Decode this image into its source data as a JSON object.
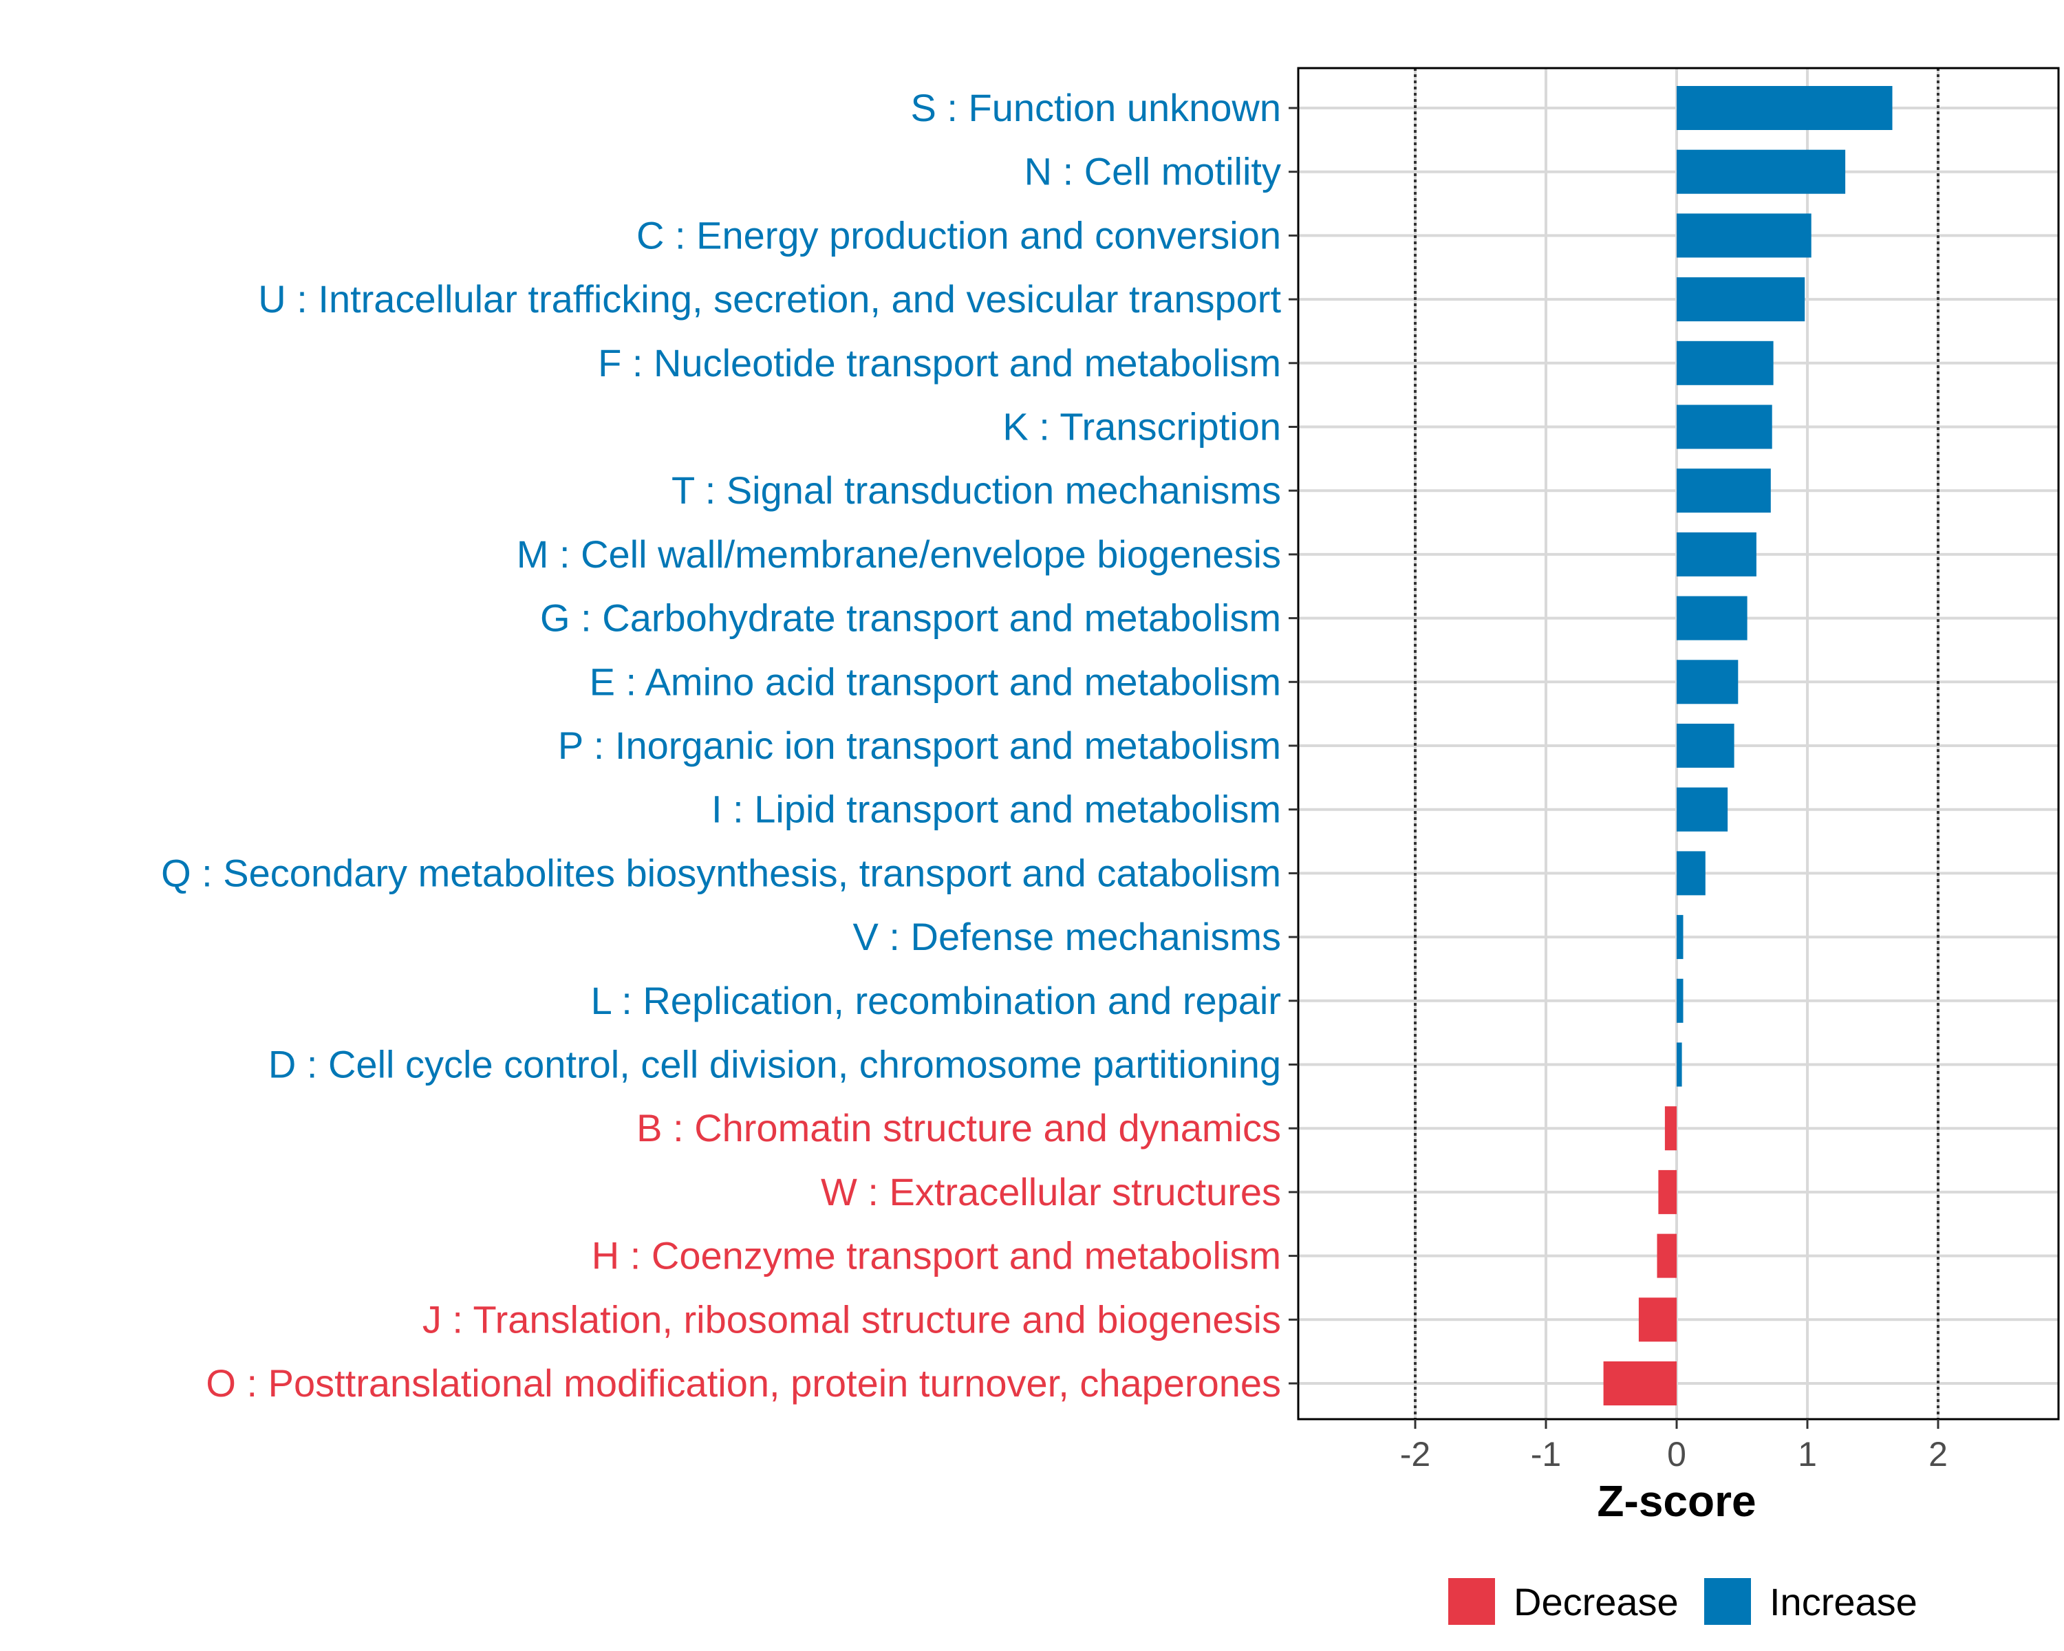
{
  "chart_data": {
    "type": "bar",
    "orientation": "horizontal",
    "title": "",
    "xlabel": "Z-score",
    "ylabel": "",
    "xlim": [
      -2.9,
      2.9
    ],
    "x_ticks": [
      -2,
      -1,
      0,
      1,
      2
    ],
    "x_tick_labels": [
      "-2",
      "-1",
      "0",
      "1",
      "2"
    ],
    "reference_lines": [
      -2,
      2
    ],
    "grid": true,
    "categories": [
      "S : Function unknown",
      "N : Cell motility",
      "C : Energy production and conversion",
      "U : Intracellular trafficking, secretion, and vesicular transport",
      "F : Nucleotide transport and metabolism",
      "K : Transcription",
      "T : Signal transduction mechanisms",
      "M : Cell wall/membrane/envelope biogenesis",
      "G : Carbohydrate transport and metabolism",
      "E : Amino acid transport and metabolism",
      "P : Inorganic ion transport and metabolism",
      "I : Lipid transport and metabolism",
      "Q : Secondary metabolites biosynthesis, transport and catabolism",
      "V : Defense mechanisms",
      "L : Replication, recombination and repair",
      "D : Cell cycle control, cell division, chromosome partitioning",
      "B : Chromatin structure and dynamics",
      "W : Extracellular structures",
      "H : Coenzyme transport and metabolism",
      "J : Translation, ribosomal structure and biogenesis",
      "O : Posttranslational modification, protein turnover, chaperones"
    ],
    "values": [
      1.65,
      1.29,
      1.03,
      0.98,
      0.74,
      0.73,
      0.72,
      0.61,
      0.54,
      0.47,
      0.44,
      0.39,
      0.22,
      0.05,
      0.05,
      0.04,
      -0.09,
      -0.14,
      -0.15,
      -0.29,
      -0.56
    ],
    "direction": [
      "Increase",
      "Increase",
      "Increase",
      "Increase",
      "Increase",
      "Increase",
      "Increase",
      "Increase",
      "Increase",
      "Increase",
      "Increase",
      "Increase",
      "Increase",
      "Increase",
      "Increase",
      "Increase",
      "Decrease",
      "Decrease",
      "Decrease",
      "Decrease",
      "Decrease"
    ],
    "legend": {
      "position": "bottom",
      "entries": [
        {
          "label": "Decrease",
          "color": "#e63946"
        },
        {
          "label": "Increase",
          "color": "#0077b6"
        }
      ]
    },
    "colors": {
      "Increase": "#0077b6",
      "Decrease": "#e63946"
    }
  }
}
